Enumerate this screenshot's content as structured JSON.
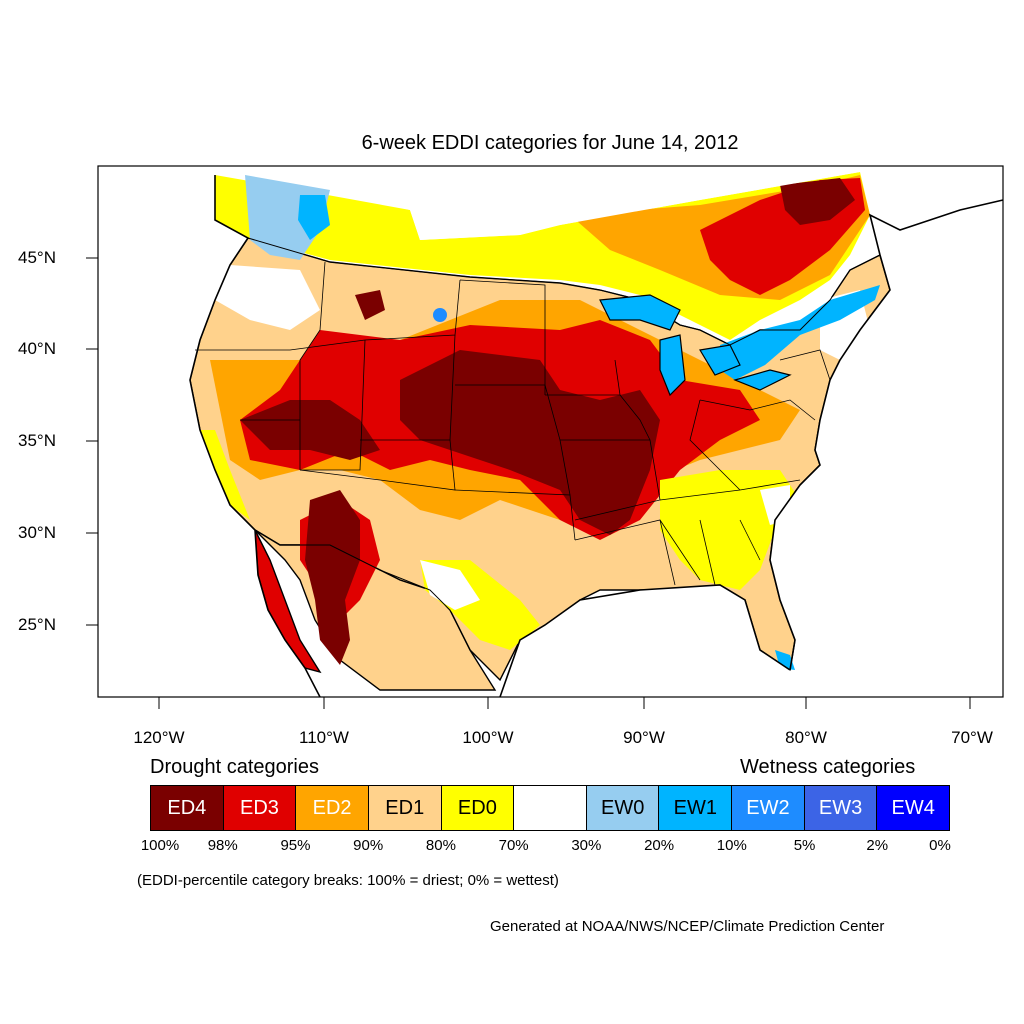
{
  "title": "6-week EDDI categories for June 14, 2012",
  "axes": {
    "lon_labels": [
      "120°W",
      "110°W",
      "100°W",
      "90°W",
      "80°W",
      "70°W"
    ],
    "lat_labels": [
      "45°N",
      "40°N",
      "35°N",
      "30°N",
      "25°N"
    ]
  },
  "legend": {
    "drought_heading": "Drought categories",
    "wetness_heading": "Wetness categories",
    "categories": [
      {
        "label": "ED4",
        "color": "#7a0000",
        "text_color": "#ffffff"
      },
      {
        "label": "ED3",
        "color": "#e00000",
        "text_color": "#ffffff"
      },
      {
        "label": "ED2",
        "color": "#ffa500",
        "text_color": "#ffffff"
      },
      {
        "label": "ED1",
        "color": "#ffd28c",
        "text_color": "#000000"
      },
      {
        "label": "ED0",
        "color": "#ffff00",
        "text_color": "#000000"
      },
      {
        "label": "",
        "color": "#ffffff",
        "text_color": "#000000"
      },
      {
        "label": "EW0",
        "color": "#96cdf0",
        "text_color": "#000000"
      },
      {
        "label": "EW1",
        "color": "#00b4ff",
        "text_color": "#000000"
      },
      {
        "label": "EW2",
        "color": "#1e8cff",
        "text_color": "#ffffff"
      },
      {
        "label": "EW3",
        "color": "#3c64e6",
        "text_color": "#ffffff"
      },
      {
        "label": "EW4",
        "color": "#0000ff",
        "text_color": "#ffffff"
      }
    ],
    "percent_labels": [
      "100%",
      "98%",
      "95%",
      "90%",
      "80%",
      "70%",
      "30%",
      "20%",
      "10%",
      "5%",
      "2%",
      "0%"
    ]
  },
  "note": "(EDDI-percentile category breaks: 100% = driest; 0% = wettest)",
  "credit": "Generated at NOAA/NWS/NCEP/Climate Prediction Center"
}
